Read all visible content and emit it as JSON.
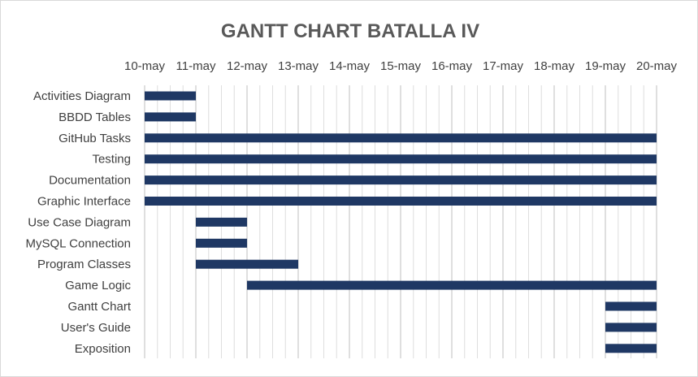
{
  "chart_data": {
    "type": "bar",
    "orientation": "horizontal",
    "subtype": "gantt",
    "title": "GANTT CHART BATALLA IV",
    "x_tick_labels": [
      "10-may",
      "11-may",
      "12-may",
      "13-may",
      "14-may",
      "15-may",
      "16-may",
      "17-may",
      "18-may",
      "19-may",
      "20-may"
    ],
    "x_axis_position": "top",
    "xlim": [
      "10-may",
      "20-may"
    ],
    "grid": true,
    "bar_color": "#1f3864",
    "tasks": [
      {
        "name": "Activities Diagram",
        "start": "10-may",
        "end": "11-may"
      },
      {
        "name": "BBDD Tables",
        "start": "10-may",
        "end": "11-may"
      },
      {
        "name": "GitHub Tasks",
        "start": "10-may",
        "end": "20-may"
      },
      {
        "name": "Testing",
        "start": "10-may",
        "end": "20-may"
      },
      {
        "name": "Documentation",
        "start": "10-may",
        "end": "20-may"
      },
      {
        "name": "Graphic Interface",
        "start": "10-may",
        "end": "20-may"
      },
      {
        "name": "Use Case Diagram",
        "start": "11-may",
        "end": "12-may"
      },
      {
        "name": "MySQL Connection",
        "start": "11-may",
        "end": "12-may"
      },
      {
        "name": "Program Classes",
        "start": "11-may",
        "end": "13-may"
      },
      {
        "name": "Game Logic",
        "start": "12-may",
        "end": "20-may"
      },
      {
        "name": "Gantt Chart",
        "start": "19-may",
        "end": "20-may"
      },
      {
        "name": "User's Guide",
        "start": "19-may",
        "end": "20-may"
      },
      {
        "name": "Exposition",
        "start": "19-may",
        "end": "20-may"
      }
    ]
  }
}
